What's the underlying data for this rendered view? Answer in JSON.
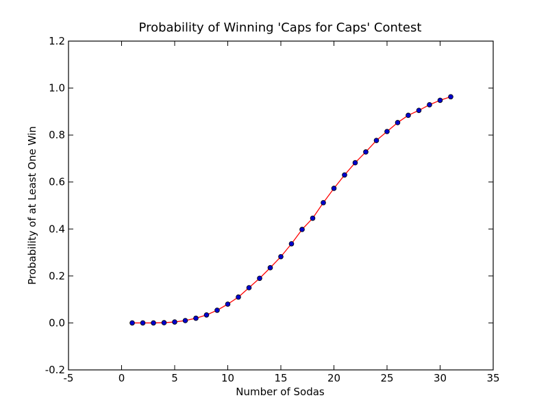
{
  "chart_data": {
    "type": "line",
    "title": "Probability of Winning 'Caps for Caps' Contest",
    "xlabel": "Number of Sodas",
    "ylabel": "Probability of at Least One Win",
    "xlim": [
      -5,
      35
    ],
    "ylim": [
      -0.2,
      1.2
    ],
    "x_ticks": [
      -5,
      0,
      5,
      10,
      15,
      20,
      25,
      30,
      35
    ],
    "y_ticks": [
      -0.2,
      0.0,
      0.2,
      0.4,
      0.6,
      0.8,
      1.0,
      1.2
    ],
    "x_tick_labels": [
      "-5",
      "0",
      "5",
      "10",
      "15",
      "20",
      "25",
      "30",
      "35"
    ],
    "y_tick_labels": [
      "-0.2",
      "0.0",
      "0.2",
      "0.4",
      "0.6",
      "0.8",
      "1.0",
      "1.2"
    ],
    "grid": false,
    "series": [
      {
        "line_color": "#ff0000",
        "marker_color": "#0000cc",
        "marker_edge": "#000000",
        "x": [
          1,
          2,
          3,
          4,
          5,
          6,
          7,
          8,
          9,
          10,
          11,
          12,
          13,
          14,
          15,
          16,
          17,
          18,
          19,
          20,
          21,
          22,
          23,
          24,
          25,
          26,
          27,
          28,
          29,
          30,
          31
        ],
        "y": [
          0.0,
          0.0,
          0.0,
          0.001,
          0.004,
          0.01,
          0.02,
          0.034,
          0.054,
          0.08,
          0.11,
          0.15,
          0.19,
          0.235,
          0.282,
          0.337,
          0.398,
          0.446,
          0.512,
          0.573,
          0.63,
          0.682,
          0.728,
          0.777,
          0.815,
          0.853,
          0.884,
          0.905,
          0.929,
          0.948,
          0.963
        ]
      }
    ]
  }
}
